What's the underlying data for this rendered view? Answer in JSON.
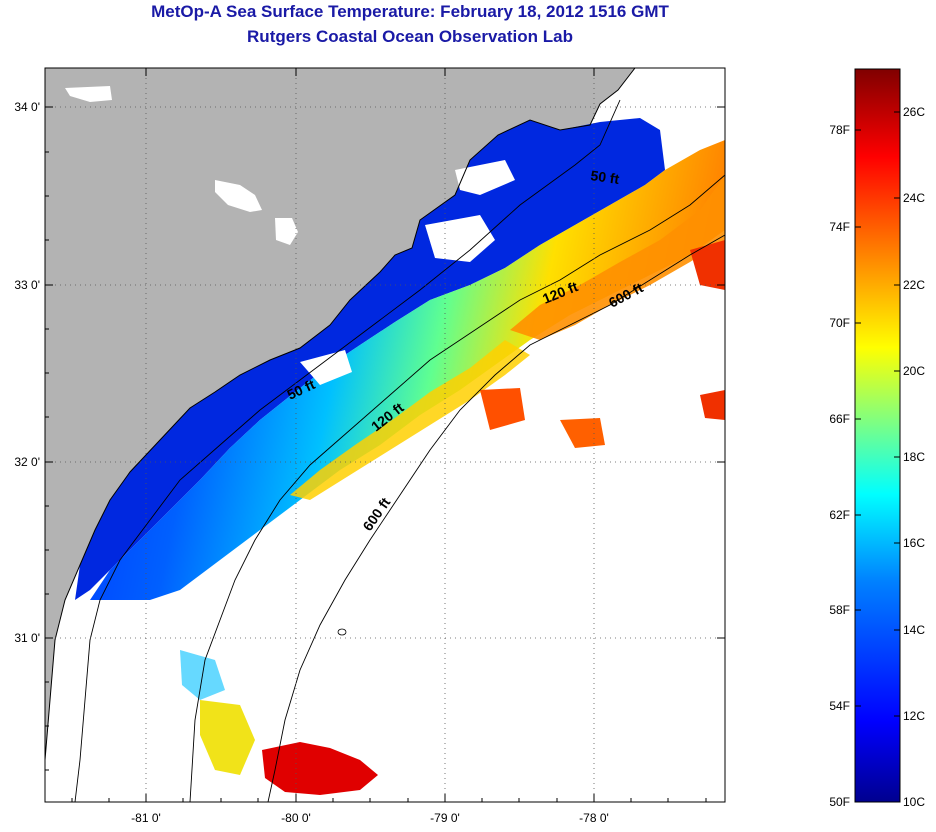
{
  "header": {
    "title": "MetOp-A Sea Surface Temperature:  February 18, 2012 1516 GMT",
    "subtitle": "Rutgers Coastal Ocean Observation Lab"
  },
  "map": {
    "lon_ticks": [
      "-81 0'",
      "-80 0'",
      "-79 0'",
      "-78 0'"
    ],
    "lat_ticks": [
      "34 0'",
      "33 0'",
      "32 0'",
      "31 0'"
    ],
    "contour_labels": [
      "50 ft",
      "120 ft",
      "600 ft",
      "50 ft",
      "120 ft",
      "600 ft"
    ],
    "land_color": "#b3b3b3",
    "cloud_color": "#ffffff"
  },
  "colorbar": {
    "fahrenheit_labels": [
      "78F",
      "74F",
      "70F",
      "66F",
      "62F",
      "58F",
      "54F",
      "50F"
    ],
    "celsius_labels": [
      "26C",
      "24C",
      "22C",
      "20C",
      "18C",
      "16C",
      "14C",
      "12C",
      "10C"
    ],
    "colors": [
      "#00008f",
      "#0000ff",
      "#0080ff",
      "#00ffff",
      "#80ff80",
      "#ffff00",
      "#ff8000",
      "#ff0000",
      "#800000"
    ]
  }
}
